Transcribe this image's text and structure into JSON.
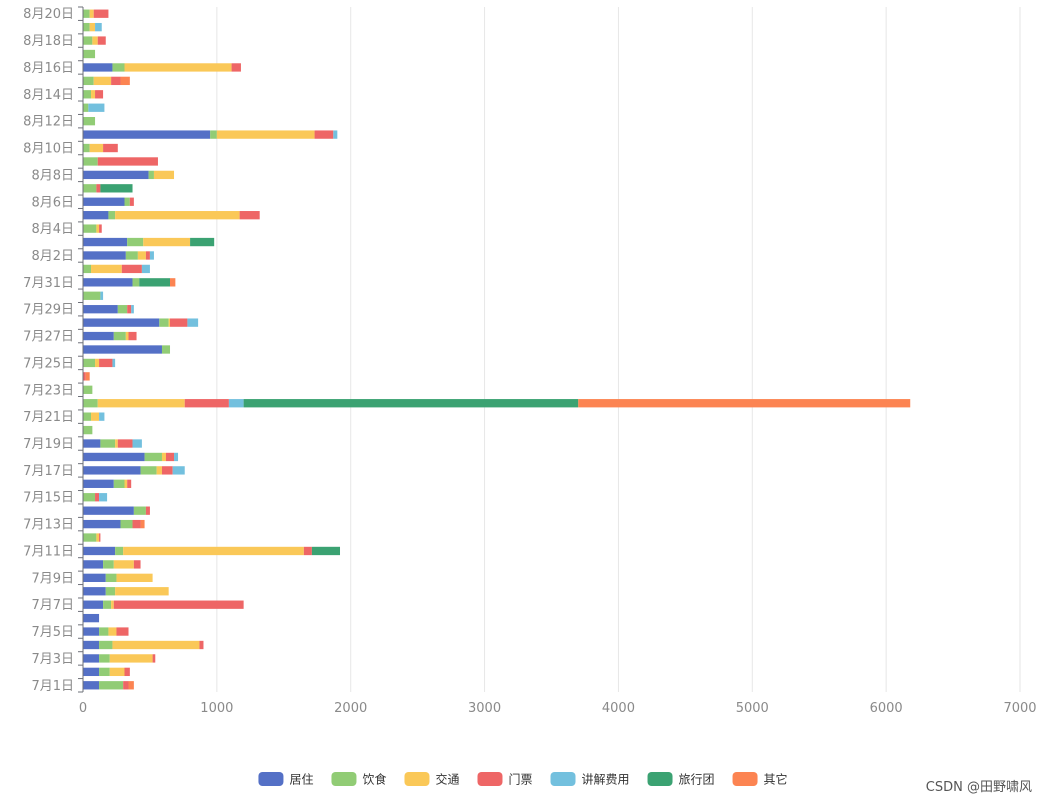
{
  "chart_data": {
    "type": "bar",
    "orientation": "horizontal",
    "stacked": true,
    "title": "",
    "xlabel": "",
    "ylabel": "",
    "xlim": [
      0,
      7000
    ],
    "x_ticks": [
      0,
      1000,
      2000,
      3000,
      4000,
      5000,
      6000,
      7000
    ],
    "grid": true,
    "legend_position": "bottom-center",
    "categories": [
      "7月1日",
      "7月2日",
      "7月3日",
      "7月4日",
      "7月5日",
      "7月6日",
      "7月7日",
      "7月8日",
      "7月9日",
      "7月10日",
      "7月11日",
      "7月12日",
      "7月13日",
      "7月14日",
      "7月15日",
      "7月16日",
      "7月17日",
      "7月18日",
      "7月19日",
      "7月20日",
      "7月21日",
      "7月22日",
      "7月23日",
      "7月24日",
      "7月25日",
      "7月26日",
      "7月27日",
      "7月28日",
      "7月29日",
      "7月30日",
      "7月31日",
      "8月1日",
      "8月2日",
      "8月3日",
      "8月4日",
      "8月5日",
      "8月6日",
      "8月7日",
      "8月8日",
      "8月9日",
      "8月10日",
      "8月11日",
      "8月12日",
      "8月13日",
      "8月14日",
      "8月15日",
      "8月16日",
      "8月17日",
      "8月18日",
      "8月19日",
      "8月20日"
    ],
    "visible_category_labels": [
      "7月1日",
      "7月3日",
      "7月5日",
      "7月7日",
      "7月9日",
      "7月11日",
      "7月13日",
      "7月15日",
      "7月17日",
      "7月19日",
      "7月21日",
      "7月23日",
      "7月25日",
      "7月27日",
      "7月29日",
      "7月31日",
      "8月2日",
      "8月4日",
      "8月6日",
      "8月8日",
      "8月10日",
      "8月12日",
      "8月14日",
      "8月16日",
      "8月18日",
      "8月20日"
    ],
    "series": [
      {
        "name": "居住",
        "color": "#5470c6",
        "values": [
          120,
          120,
          120,
          120,
          120,
          120,
          150,
          170,
          170,
          150,
          240,
          0,
          280,
          380,
          0,
          230,
          430,
          460,
          130,
          0,
          0,
          0,
          0,
          0,
          0,
          590,
          230,
          570,
          260,
          0,
          370,
          0,
          320,
          330,
          0,
          190,
          310,
          0,
          490,
          0,
          0,
          950,
          0,
          0,
          0,
          0,
          220,
          0,
          0,
          0,
          0
        ]
      },
      {
        "name": "饮食",
        "color": "#91cc75",
        "values": [
          180,
          80,
          80,
          100,
          70,
          0,
          60,
          70,
          80,
          80,
          60,
          100,
          90,
          90,
          90,
          80,
          120,
          130,
          110,
          70,
          60,
          110,
          70,
          0,
          90,
          60,
          90,
          70,
          70,
          130,
          50,
          60,
          90,
          120,
          100,
          50,
          40,
          100,
          40,
          110,
          50,
          50,
          90,
          40,
          60,
          80,
          90,
          90,
          70,
          50,
          50
        ]
      },
      {
        "name": "交通",
        "color": "#fac858",
        "values": [
          0,
          110,
          320,
          650,
          60,
          0,
          20,
          400,
          270,
          150,
          1350,
          20,
          0,
          0,
          0,
          20,
          40,
          30,
          20,
          0,
          60,
          650,
          0,
          0,
          30,
          0,
          20,
          10,
          0,
          0,
          0,
          230,
          60,
          350,
          20,
          930,
          0,
          0,
          150,
          0,
          100,
          730,
          0,
          0,
          30,
          130,
          800,
          0,
          40,
          40,
          30
        ]
      },
      {
        "name": "门票",
        "color": "#ee6666",
        "values": [
          40,
          40,
          20,
          30,
          90,
          0,
          970,
          0,
          0,
          50,
          60,
          10,
          60,
          30,
          30,
          30,
          80,
          60,
          110,
          0,
          0,
          330,
          0,
          20,
          100,
          0,
          60,
          130,
          30,
          0,
          0,
          150,
          30,
          0,
          20,
          150,
          30,
          30,
          0,
          450,
          110,
          140,
          0,
          0,
          60,
          70,
          70,
          0,
          60,
          0,
          110
        ]
      },
      {
        "name": "讲解费用",
        "color": "#73c0de",
        "values": [
          0,
          0,
          0,
          0,
          0,
          0,
          0,
          0,
          0,
          0,
          0,
          0,
          0,
          0,
          60,
          0,
          90,
          30,
          70,
          0,
          40,
          110,
          0,
          0,
          20,
          0,
          0,
          80,
          20,
          20,
          0,
          60,
          30,
          0,
          0,
          0,
          0,
          0,
          0,
          0,
          0,
          30,
          0,
          120,
          0,
          0,
          0,
          0,
          0,
          50,
          0
        ]
      },
      {
        "name": "旅行团",
        "color": "#3ba272",
        "values": [
          0,
          0,
          0,
          0,
          0,
          0,
          0,
          0,
          0,
          0,
          210,
          0,
          0,
          0,
          0,
          0,
          0,
          0,
          0,
          0,
          0,
          2500,
          0,
          0,
          0,
          0,
          0,
          0,
          0,
          0,
          230,
          0,
          0,
          180,
          0,
          0,
          0,
          240,
          0,
          0,
          0,
          0,
          0,
          0,
          0,
          0,
          0,
          0,
          0,
          0,
          0
        ]
      },
      {
        "name": "其它",
        "color": "#fc8452",
        "values": [
          40,
          0,
          0,
          0,
          0,
          0,
          0,
          0,
          0,
          0,
          0,
          0,
          30,
          0,
          0,
          0,
          0,
          0,
          0,
          0,
          0,
          2480,
          0,
          30,
          0,
          0,
          0,
          0,
          0,
          0,
          40,
          0,
          0,
          0,
          0,
          0,
          0,
          0,
          0,
          0,
          0,
          0,
          0,
          0,
          0,
          70,
          0,
          0,
          0,
          0,
          0
        ]
      }
    ]
  },
  "watermark": "CSDN @田野啸风"
}
